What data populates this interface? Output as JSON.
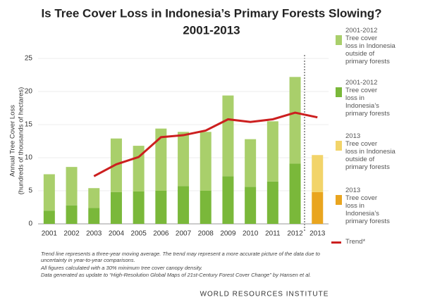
{
  "chart_data": {
    "type": "bar",
    "title": "Is Tree Cover Loss in Indonesia’s Primary Forests Slowing?",
    "subtitle": "2001-2013",
    "y_label": [
      "Annual Tree Cover Loss",
      "(hundreds of thousands of hectares)"
    ],
    "categories": [
      "2001",
      "2002",
      "2003",
      "2004",
      "2005",
      "2006",
      "2007",
      "2008",
      "2009",
      "2010",
      "2011",
      "2012",
      "2013"
    ],
    "ylim": [
      0,
      25
    ],
    "yticks": [
      0,
      5,
      10,
      15,
      20,
      25
    ],
    "grid": true,
    "series": [
      {
        "name": "2001-2012\nTree cover\nloss in Indonesia\noutside of\nprimary forests",
        "type": "bar",
        "color": "#a9cf6b",
        "values": [
          5.5,
          5.8,
          3.0,
          8.1,
          6.9,
          9.4,
          8.2,
          8.9,
          12.2,
          7.2,
          9.1,
          13.1,
          null
        ]
      },
      {
        "name": "2001-2012\nTree cover\nloss in\nIndonesia’s\nprimary forests",
        "type": "bar",
        "color": "#7ab83a",
        "values": [
          2.0,
          2.8,
          2.4,
          4.8,
          4.9,
          5.0,
          5.7,
          5.0,
          7.2,
          5.6,
          6.4,
          9.1,
          null
        ]
      },
      {
        "name": "2013\nTree cover\nloss in Indonesia\noutside of\nprimary forests",
        "type": "bar",
        "color": "#f2d46a",
        "values": [
          null,
          null,
          null,
          null,
          null,
          null,
          null,
          null,
          null,
          null,
          null,
          null,
          5.6
        ]
      },
      {
        "name": "2013\nTree cover\nloss in\nIndonesia’s\nprimary forests",
        "type": "bar",
        "color": "#e9a51f",
        "values": [
          null,
          null,
          null,
          null,
          null,
          null,
          null,
          null,
          null,
          null,
          null,
          null,
          4.8
        ]
      },
      {
        "name": "Trend*",
        "type": "line",
        "color": "#cc1f1f",
        "values": [
          null,
          null,
          7.2,
          9.0,
          10.1,
          13.1,
          13.4,
          14.1,
          15.8,
          15.4,
          15.8,
          16.8,
          16.1
        ]
      }
    ],
    "notes": [
      "Trend line represents a three-year moving average. The trend may represent a more accurate picture of the data due to uncertainty in year-to-year comparisons.",
      "All figures calculated with a 30% minimum tree cover canopy density.",
      "Data generated as update to “High-Resolution Global Maps of 21st-Century Forest Cover Change” by Hansen et al."
    ],
    "source": "WORLD RESOURCES INSTITUTE"
  }
}
